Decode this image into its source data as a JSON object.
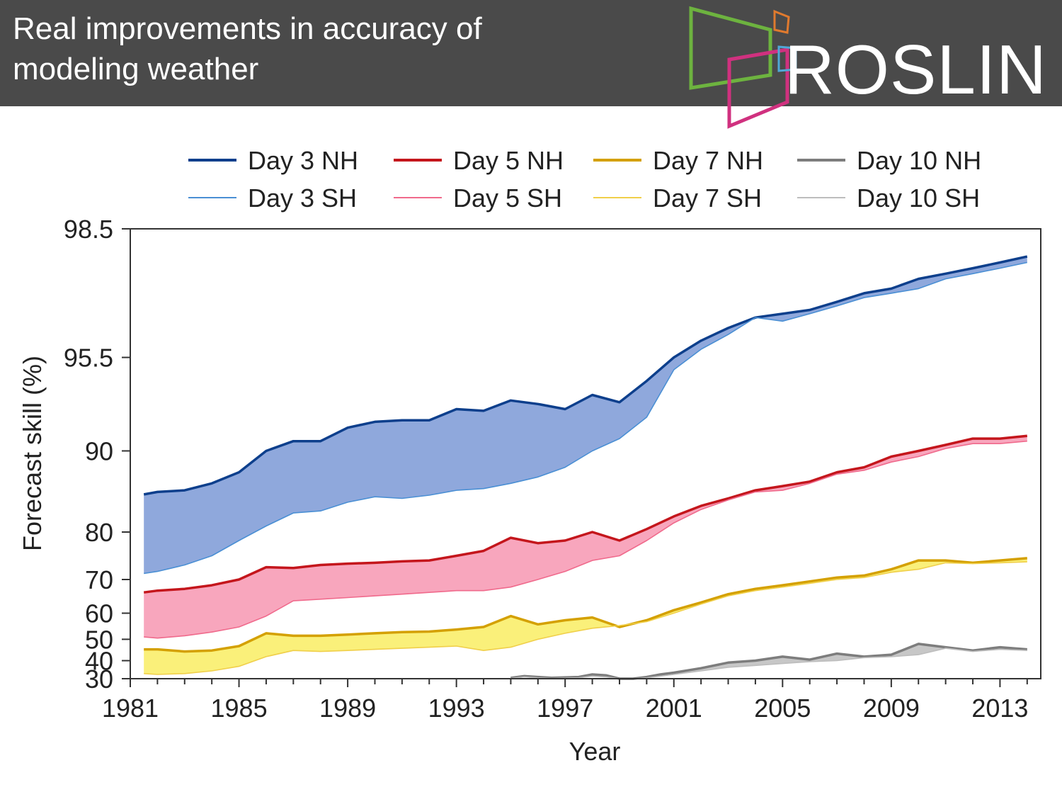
{
  "banner": {
    "title_line1": "Real improvements in accuracy of",
    "title_line2": "modeling weather",
    "logo_text": "ROSLIN",
    "background": "#4a4a4a"
  },
  "chart_data": {
    "type": "area",
    "xlabel": "Year",
    "ylabel": "Forecast skill (%)",
    "xlim": [
      1981,
      2014.5
    ],
    "ylim": [
      30,
      98.5
    ],
    "y_scale": "log-distance-from-100",
    "x_ticks": [
      1981,
      1985,
      1989,
      1993,
      1997,
      2001,
      2005,
      2009,
      2013
    ],
    "y_ticks": [
      30,
      40,
      50,
      60,
      70,
      80,
      90,
      95.5,
      98.5
    ],
    "legend_position": "top",
    "grid": false,
    "series": [
      {
        "name": "Day 3 NH",
        "group": "day3",
        "hemisphere": "NH",
        "color": "#0d3f8c",
        "x": [
          1981.5,
          1982,
          1983,
          1984,
          1985,
          1986,
          1987,
          1988,
          1989,
          1990,
          1991,
          1992,
          1993,
          1994,
          1995,
          1996,
          1997,
          1998,
          1999,
          2000,
          2001,
          2002,
          2003,
          2004,
          2005,
          2006,
          2007,
          2008,
          2009,
          2010,
          2011,
          2012,
          2013,
          2014
        ],
        "y": [
          85.5,
          85.8,
          86.0,
          86.8,
          88.0,
          90.0,
          90.8,
          90.8,
          91.8,
          92.2,
          92.3,
          92.3,
          93.0,
          92.9,
          93.5,
          93.3,
          93.0,
          93.8,
          93.4,
          94.5,
          95.5,
          96.1,
          96.5,
          96.8,
          96.9,
          97.0,
          97.2,
          97.4,
          97.5,
          97.7,
          97.8,
          97.9,
          98.0,
          98.1
        ]
      },
      {
        "name": "Day 3 SH",
        "group": "day3",
        "hemisphere": "SH",
        "color": "#4a8fd4",
        "x": [
          1981.5,
          1982,
          1983,
          1984,
          1985,
          1986,
          1987,
          1988,
          1989,
          1990,
          1991,
          1992,
          1993,
          1994,
          1995,
          1996,
          1997,
          1998,
          1999,
          2000,
          2001,
          2002,
          2003,
          2004,
          2005,
          2006,
          2007,
          2008,
          2009,
          2010,
          2011,
          2012,
          2013,
          2014
        ],
        "y": [
          71.5,
          72.0,
          73.5,
          75.5,
          78.5,
          81.0,
          83.0,
          83.3,
          84.5,
          85.2,
          85.0,
          85.4,
          86.0,
          86.2,
          86.8,
          87.5,
          88.5,
          90.0,
          91.0,
          92.5,
          95.0,
          95.8,
          96.3,
          96.8,
          96.7,
          96.9,
          97.1,
          97.3,
          97.4,
          97.5,
          97.7,
          97.8,
          97.9,
          98.0
        ]
      },
      {
        "name": "Day 5 NH",
        "group": "day5",
        "hemisphere": "NH",
        "color": "#c4161c",
        "x": [
          1981.5,
          1982,
          1983,
          1984,
          1985,
          1986,
          1987,
          1988,
          1989,
          1990,
          1991,
          1992,
          1993,
          1994,
          1995,
          1996,
          1997,
          1998,
          1999,
          2000,
          2001,
          2002,
          2003,
          2004,
          2005,
          2006,
          2007,
          2008,
          2009,
          2010,
          2011,
          2012,
          2013,
          2014
        ],
        "y": [
          66.5,
          67.0,
          67.5,
          68.5,
          70.0,
          73.0,
          72.8,
          73.5,
          73.8,
          74.0,
          74.3,
          74.5,
          75.5,
          76.5,
          79.0,
          78.0,
          78.5,
          80.0,
          78.5,
          80.5,
          82.5,
          84.0,
          85.0,
          86.0,
          86.5,
          87.0,
          88.0,
          88.5,
          89.5,
          90.0,
          90.5,
          91.0,
          91.0,
          91.2
        ]
      },
      {
        "name": "Day 5 SH",
        "group": "day5",
        "hemisphere": "SH",
        "color": "#f06a8c",
        "x": [
          1981.5,
          1982,
          1983,
          1984,
          1985,
          1986,
          1987,
          1988,
          1989,
          1990,
          1991,
          1992,
          1993,
          1994,
          1995,
          1996,
          1997,
          1998,
          1999,
          2000,
          2001,
          2002,
          2003,
          2004,
          2005,
          2006,
          2007,
          2008,
          2009,
          2010,
          2011,
          2012,
          2013,
          2014
        ],
        "y": [
          51.0,
          50.5,
          51.5,
          53.0,
          55.0,
          59.0,
          64.0,
          64.5,
          65.0,
          65.5,
          66.0,
          66.5,
          67.0,
          67.0,
          68.0,
          70.0,
          72.0,
          74.5,
          75.5,
          78.5,
          81.5,
          83.5,
          84.8,
          85.8,
          86.0,
          86.8,
          87.8,
          88.2,
          89.0,
          89.5,
          90.2,
          90.6,
          90.6,
          90.8
        ]
      },
      {
        "name": "Day 7 NH",
        "group": "day7",
        "hemisphere": "NH",
        "color": "#d4a000",
        "x": [
          1981.5,
          1982,
          1983,
          1984,
          1985,
          1986,
          1987,
          1988,
          1989,
          1990,
          1991,
          1992,
          1993,
          1994,
          1995,
          1996,
          1997,
          1998,
          1999,
          2000,
          2001,
          2002,
          2003,
          2004,
          2005,
          2006,
          2007,
          2008,
          2009,
          2010,
          2011,
          2012,
          2013,
          2014
        ],
        "y": [
          45.5,
          45.5,
          44.5,
          45.0,
          47.0,
          52.5,
          51.5,
          51.5,
          52.0,
          52.5,
          53.0,
          53.2,
          54.0,
          55.0,
          59.0,
          56.0,
          57.5,
          58.5,
          55.0,
          57.5,
          61.0,
          63.5,
          66.0,
          67.5,
          68.5,
          69.5,
          70.5,
          71.0,
          72.5,
          74.5,
          74.5,
          74.0,
          74.5,
          75.0
        ]
      },
      {
        "name": "Day 7 SH",
        "group": "day7",
        "hemisphere": "SH",
        "color": "#f0cf4a",
        "x": [
          1981.5,
          1982,
          1983,
          1984,
          1985,
          1986,
          1987,
          1988,
          1989,
          1990,
          1991,
          1992,
          1993,
          1994,
          1995,
          1996,
          1997,
          1998,
          1999,
          2000,
          2001,
          2002,
          2003,
          2004,
          2005,
          2006,
          2007,
          2008,
          2009,
          2010,
          2011,
          2012,
          2013,
          2014
        ],
        "y": [
          33.0,
          32.5,
          33.0,
          34.5,
          37.0,
          42.0,
          45.0,
          44.5,
          45.0,
          45.5,
          46.0,
          46.5,
          47.0,
          45.0,
          46.5,
          50.0,
          52.5,
          54.5,
          55.5,
          57.0,
          60.0,
          63.0,
          65.5,
          67.0,
          68.0,
          69.0,
          70.0,
          70.5,
          71.8,
          72.5,
          74.0,
          73.8,
          74.0,
          74.2
        ]
      },
      {
        "name": "Day 10 NH",
        "group": "day10",
        "hemisphere": "NH",
        "color": "#7d7d7d",
        "x": [
          1995,
          1995.5,
          1996,
          1996.5,
          1997.5,
          1998,
          1998.5,
          1999,
          1999.5,
          2000,
          2000.5,
          2001,
          2002,
          2003,
          2004,
          2005,
          2006,
          2007,
          2008,
          2009,
          2010,
          2011,
          2012,
          2013,
          2014
        ],
        "y": [
          30.5,
          31.5,
          31.0,
          30.5,
          31.0,
          32.5,
          32.0,
          30.0,
          30.0,
          31.0,
          32.5,
          33.5,
          36.0,
          39.0,
          40.0,
          42.0,
          40.5,
          43.5,
          42.0,
          43.0,
          48.0,
          46.5,
          45.0,
          46.5,
          45.5
        ]
      },
      {
        "name": "Day 10 SH",
        "group": "day10",
        "hemisphere": "SH",
        "color": "#bdbdbd",
        "x": [
          1995,
          1995.5,
          1996,
          1996.5,
          1997.5,
          1998,
          1998.5,
          1999,
          1999.5,
          2000,
          2000.5,
          2001,
          2002,
          2003,
          2004,
          2005,
          2006,
          2007,
          2008,
          2009,
          2010,
          2011,
          2012,
          2013,
          2014
        ],
        "y": [
          30.2,
          31.0,
          30.5,
          30.2,
          30.5,
          31.5,
          31.0,
          30.0,
          30.0,
          30.5,
          31.5,
          32.5,
          34.5,
          36.5,
          37.5,
          38.5,
          39.5,
          40.0,
          41.5,
          42.0,
          43.0,
          46.0,
          44.5,
          45.5,
          45.0
        ]
      }
    ],
    "bands": [
      {
        "upper": "Day 3 NH",
        "lower": "Day 3 SH",
        "fill": "#8fa8dc"
      },
      {
        "upper": "Day 5 NH",
        "lower": "Day 5 SH",
        "fill": "#f8a6bd"
      },
      {
        "upper": "Day 7 NH",
        "lower": "Day 7 SH",
        "fill": "#faf07a"
      },
      {
        "upper": "Day 10 NH",
        "lower": "Day 10 SH",
        "fill": "#c7c7c7"
      }
    ]
  }
}
